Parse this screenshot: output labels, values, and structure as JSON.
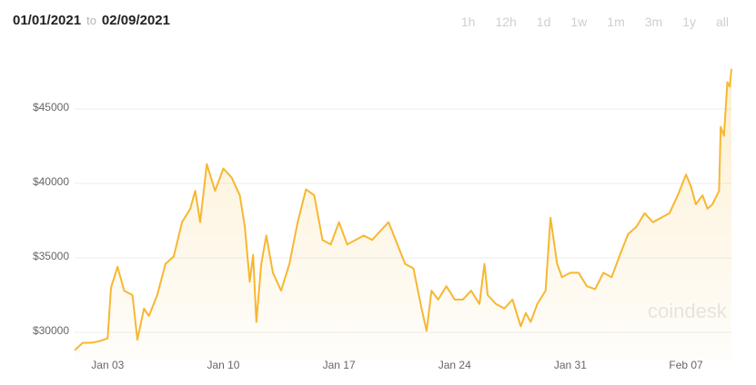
{
  "header": {
    "from": "01/01/2021",
    "to_word": "to",
    "to": "02/09/2021",
    "ranges": [
      "1h",
      "12h",
      "1d",
      "1w",
      "1m",
      "3m",
      "1y",
      "all"
    ]
  },
  "watermark": "coindesk",
  "chart_data": {
    "type": "line",
    "color": "#f7b731",
    "grid": true,
    "xlim": [
      0,
      39.75
    ],
    "ylim": [
      28000,
      48600
    ],
    "xticks": [
      {
        "value": 2,
        "label": "Jan 03"
      },
      {
        "value": 9,
        "label": "Jan 10"
      },
      {
        "value": 16,
        "label": "Jan 17"
      },
      {
        "value": 23,
        "label": "Jan 24"
      },
      {
        "value": 30,
        "label": "Jan 31"
      },
      {
        "value": 37,
        "label": "Feb 07"
      }
    ],
    "yticks": [
      {
        "value": 30000,
        "label": "$30000"
      },
      {
        "value": 35000,
        "label": "$35000"
      },
      {
        "value": 40000,
        "label": "$40000"
      },
      {
        "value": 45000,
        "label": "$45000"
      }
    ],
    "x": [
      0,
      0.5,
      1,
      1.5,
      2,
      2.2,
      2.6,
      3,
      3.5,
      3.8,
      4.2,
      4.5,
      5,
      5.5,
      6,
      6.5,
      7,
      7.3,
      7.6,
      8,
      8.5,
      9,
      9.5,
      10,
      10.3,
      10.6,
      10.8,
      11,
      11.3,
      11.6,
      12,
      12.5,
      13,
      13.5,
      14,
      14.5,
      15,
      15.5,
      16,
      16.5,
      17,
      17.5,
      18,
      18.5,
      19,
      19.5,
      20,
      20.5,
      21,
      21.3,
      21.6,
      22,
      22.5,
      23,
      23.5,
      24,
      24.5,
      24.8,
      25,
      25.5,
      26,
      26.5,
      27,
      27.3,
      27.6,
      28,
      28.5,
      28.8,
      29.2,
      29.5,
      30,
      30.5,
      31,
      31.5,
      32,
      32.5,
      33,
      33.5,
      34,
      34.5,
      35,
      35.5,
      36,
      36.5,
      37,
      37.3,
      37.6,
      38,
      38.3,
      38.6,
      39,
      39.1,
      39.3,
      39.5,
      39.65,
      39.75
    ],
    "values": [
      28800,
      29300,
      29300,
      29400,
      29600,
      33000,
      34400,
      32800,
      32500,
      29500,
      31600,
      31100,
      32500,
      34600,
      35100,
      37400,
      38300,
      39500,
      37400,
      41300,
      39500,
      41000,
      40400,
      39200,
      37100,
      33400,
      35200,
      30700,
      34600,
      36500,
      34000,
      32800,
      34600,
      37400,
      39600,
      39200,
      36200,
      35900,
      37400,
      35900,
      36200,
      36500,
      36200,
      36800,
      37400,
      36000,
      34600,
      34300,
      31600,
      30100,
      32800,
      32200,
      33100,
      32200,
      32200,
      32800,
      31900,
      34600,
      32500,
      31900,
      31600,
      32200,
      30400,
      31300,
      30700,
      31900,
      32800,
      37700,
      34600,
      33700,
      34000,
      34000,
      33100,
      32900,
      34000,
      33700,
      35200,
      36600,
      37100,
      38000,
      37400,
      37700,
      38000,
      39200,
      40600,
      39800,
      38600,
      39200,
      38300,
      38600,
      39500,
      43800,
      43200,
      46800,
      46500,
      47700
    ]
  }
}
